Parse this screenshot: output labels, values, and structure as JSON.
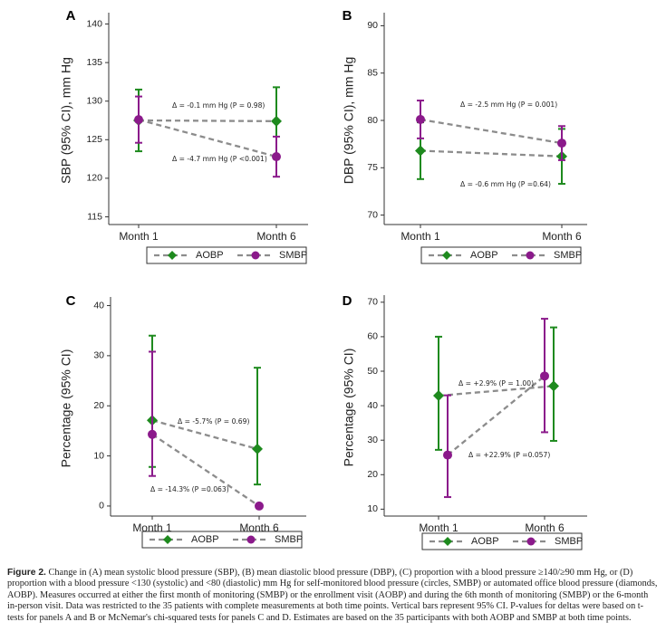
{
  "chart_data": [
    {
      "panel": "A",
      "type": "line",
      "ylabel": "SBP (95% CI), mm Hg",
      "categories": [
        "Month 1",
        "Month 6"
      ],
      "ylim": [
        114,
        141
      ],
      "yticks": [
        115,
        120,
        125,
        130,
        135,
        140
      ],
      "series": [
        {
          "name": "AOBP",
          "marker": "diamond",
          "color": "#1e8a1e",
          "values": [
            127.5,
            127.4
          ],
          "ci_low": [
            123.5,
            123.0
          ],
          "ci_high": [
            131.5,
            131.8
          ]
        },
        {
          "name": "SMBP",
          "marker": "circle",
          "color": "#8b1a8b",
          "values": [
            127.6,
            122.8
          ],
          "ci_low": [
            124.6,
            120.2
          ],
          "ci_high": [
            130.6,
            125.4
          ]
        }
      ],
      "annotations": [
        "Δ = -0.1 mm Hg (P = 0.98)",
        "Δ = -4.7 mm Hg (P <0.001)"
      ],
      "legend": [
        "AOBP",
        "SMBP"
      ]
    },
    {
      "panel": "B",
      "type": "line",
      "ylabel": "DBP (95% CI), mm Hg",
      "categories": [
        "Month 1",
        "Month 6"
      ],
      "ylim": [
        69,
        91
      ],
      "yticks": [
        70,
        75,
        80,
        85,
        90
      ],
      "series": [
        {
          "name": "AOBP",
          "marker": "diamond",
          "color": "#1e8a1e",
          "values": [
            76.8,
            76.2
          ],
          "ci_low": [
            73.8,
            73.3
          ],
          "ci_high": [
            79.8,
            79.1
          ]
        },
        {
          "name": "SMBP",
          "marker": "circle",
          "color": "#8b1a8b",
          "values": [
            80.1,
            77.6
          ],
          "ci_low": [
            78.1,
            75.8
          ],
          "ci_high": [
            82.1,
            79.4
          ]
        }
      ],
      "annotations": [
        "Δ = -2.5 mm Hg (P = 0.001)",
        "Δ = -0.6 mm Hg (P =0.64)"
      ],
      "legend": [
        "AOBP",
        "SMBP"
      ]
    },
    {
      "panel": "C",
      "type": "line",
      "ylabel": "Percentage (95% CI)",
      "categories": [
        "Month 1",
        "Month 6"
      ],
      "ylim": [
        -2,
        41
      ],
      "yticks": [
        0,
        10,
        20,
        30,
        40
      ],
      "series": [
        {
          "name": "AOBP",
          "marker": "diamond",
          "color": "#1e8a1e",
          "values": [
            17.1,
            11.4
          ],
          "ci_low": [
            7.8,
            4.3
          ],
          "ci_high": [
            34.0,
            27.6
          ]
        },
        {
          "name": "SMBP",
          "marker": "circle",
          "color": "#8b1a8b",
          "values": [
            14.3,
            0.0
          ],
          "ci_low": [
            6.0,
            0.0
          ],
          "ci_high": [
            30.8,
            0.0
          ]
        }
      ],
      "annotations": [
        "Δ = -5.7% (P = 0.69)",
        "Δ = -14.3% (P =0.063)"
      ],
      "legend": [
        "AOBP",
        "SMBP"
      ]
    },
    {
      "panel": "D",
      "type": "line",
      "ylabel": "Percentage (95% CI)",
      "categories": [
        "Month 1",
        "Month 6"
      ],
      "ylim": [
        8,
        71
      ],
      "yticks": [
        10,
        20,
        30,
        40,
        50,
        60,
        70
      ],
      "series": [
        {
          "name": "AOBP",
          "marker": "diamond",
          "color": "#1e8a1e",
          "values": [
            42.9,
            45.7
          ],
          "ci_low": [
            27.2,
            29.8
          ],
          "ci_high": [
            60.0,
            62.7
          ]
        },
        {
          "name": "SMBP",
          "marker": "circle",
          "color": "#8b1a8b",
          "values": [
            25.7,
            48.6
          ],
          "ci_low": [
            13.5,
            32.3
          ],
          "ci_high": [
            43.0,
            65.2
          ]
        }
      ],
      "annotations": [
        "Δ = +2.9% (P = 1.00)",
        "Δ = +22.9% (P =0.057)"
      ],
      "legend": [
        "AOBP",
        "SMBP"
      ]
    }
  ],
  "caption": {
    "label": "Figure 2.",
    "text": "Change in (A) mean systolic blood pressure (SBP), (B) mean diastolic blood pressure (DBP), (C) proportion with a blood pressure ≥140/≥90 mm Hg, or (D) proportion with a blood pressure <130 (systolic) and <80 (diastolic) mm Hg for self-monitored blood pressure (circles, SMBP) or automated office blood pressure (diamonds, AOBP). Measures occurred at either the first month of monitoring (SMBP) or the enrollment visit (AOBP) and during the 6th month of monitoring (SMBP) or the 6-month in-person visit. Data was restricted to the 35 patients with complete measurements at both time points. Vertical bars represent 95% CI. P-values for deltas were based on t-tests for panels A and B or McNemar's chi-squared tests for panels C and D. Estimates are based on the 35 participants with both AOBP and SMBP at both time points."
  }
}
